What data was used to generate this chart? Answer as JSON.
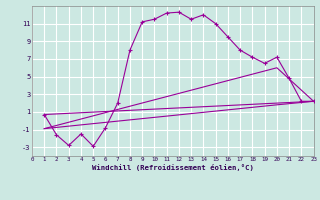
{
  "xlabel": "Windchill (Refroidissement éolien,°C)",
  "background_color": "#cce8e2",
  "grid_color": "#b0d8d0",
  "line_color": "#990099",
  "xlim": [
    0,
    23
  ],
  "ylim": [
    -4,
    13
  ],
  "yticks": [
    -3,
    -1,
    1,
    3,
    5,
    7,
    9,
    11
  ],
  "xticks": [
    0,
    1,
    2,
    3,
    4,
    5,
    6,
    7,
    8,
    9,
    10,
    11,
    12,
    13,
    14,
    15,
    16,
    17,
    18,
    19,
    20,
    21,
    22,
    23
  ],
  "curve1_x": [
    1,
    2,
    3,
    4,
    5,
    6,
    7,
    8,
    9,
    10,
    11,
    12,
    13,
    14,
    15,
    16,
    17,
    18,
    19,
    20,
    21,
    22,
    23
  ],
  "curve1_y": [
    0.7,
    -1.6,
    -2.8,
    -1.5,
    -2.9,
    -0.8,
    2.0,
    8.0,
    11.2,
    11.5,
    12.2,
    12.3,
    11.5,
    12.0,
    11.0,
    9.5,
    8.0,
    7.2,
    6.5,
    7.2,
    4.8,
    2.2,
    2.2
  ],
  "line2_x": [
    1,
    23
  ],
  "line2_y": [
    0.7,
    2.2
  ],
  "line3_x": [
    1,
    20,
    23
  ],
  "line3_y": [
    -0.9,
    6.0,
    2.2
  ],
  "line4_x": [
    1,
    20,
    23
  ],
  "line4_y": [
    -0.9,
    1.8,
    2.2
  ]
}
